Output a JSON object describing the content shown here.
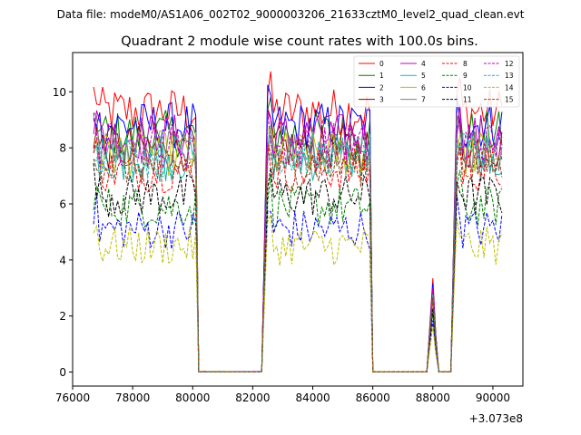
{
  "figure": {
    "suptitle": "Data file: modeM0/AS1A06_002T02_9000003206_21633cztM0_level2_quad_clean.evt",
    "title": "Quadrant 2 module wise count rates with 100.0s bins.",
    "x_offset_label": "+3.073e8"
  },
  "chart_data": {
    "type": "line",
    "title": "Quadrant 2 module wise count rates with 100.0s bins.",
    "xlabel": "",
    "ylabel": "",
    "x_offset": 307300000,
    "xlim": [
      76000,
      91000
    ],
    "ylim": [
      -0.5,
      11.4
    ],
    "xticks": [
      76000,
      78000,
      80000,
      82000,
      84000,
      86000,
      88000,
      90000
    ],
    "yticks": [
      0,
      2,
      4,
      6,
      8,
      10
    ],
    "grid": false,
    "legend_position": "top-right",
    "legend_columns": 4,
    "bin_seconds": 100,
    "segments": [
      {
        "start": 76700,
        "end": 80100
      },
      {
        "start": 82500,
        "end": 85900
      },
      {
        "start": 88800,
        "end": 90300
      }
    ],
    "gap_zero_x": [
      80200,
      80300,
      82300,
      86000,
      86100,
      87800,
      88200,
      88300,
      88600
    ],
    "small_peak": {
      "x": 88000,
      "scale": 0.36
    },
    "series": [
      {
        "name": "0",
        "color": "#ff0000",
        "dash": "solid",
        "level": 9.3
      },
      {
        "name": "1",
        "color": "#008000",
        "dash": "solid",
        "level": 8.5
      },
      {
        "name": "2",
        "color": "#0000ff",
        "dash": "solid",
        "level": 8.8
      },
      {
        "name": "3",
        "color": "#8b0000",
        "dash": "solid",
        "level": 8.0
      },
      {
        "name": "4",
        "color": "#bf00bf",
        "dash": "solid",
        "level": 8.4
      },
      {
        "name": "5",
        "color": "#20b2aa",
        "dash": "solid",
        "level": 7.6
      },
      {
        "name": "6",
        "color": "#bfbf00",
        "dash": "solid",
        "level": 7.8
      },
      {
        "name": "7",
        "color": "#808080",
        "dash": "solid",
        "level": 7.9
      },
      {
        "name": "8",
        "color": "#ff0000",
        "dash": "dashed",
        "level": 7.2
      },
      {
        "name": "9",
        "color": "#008000",
        "dash": "dashed",
        "level": 5.9
      },
      {
        "name": "10",
        "color": "#0000ff",
        "dash": "dashed",
        "level": 5.1
      },
      {
        "name": "11",
        "color": "#000000",
        "dash": "dashed",
        "level": 6.3
      },
      {
        "name": "12",
        "color": "#bf00bf",
        "dash": "dashed",
        "level": 8.1
      },
      {
        "name": "13",
        "color": "#20b2aa",
        "dash": "dashed",
        "level": 7.7
      },
      {
        "name": "14",
        "color": "#bfbf00",
        "dash": "dashed",
        "level": 4.5
      },
      {
        "name": "15",
        "color": "#8b4513",
        "dash": "dashed",
        "level": 7.4
      }
    ]
  }
}
